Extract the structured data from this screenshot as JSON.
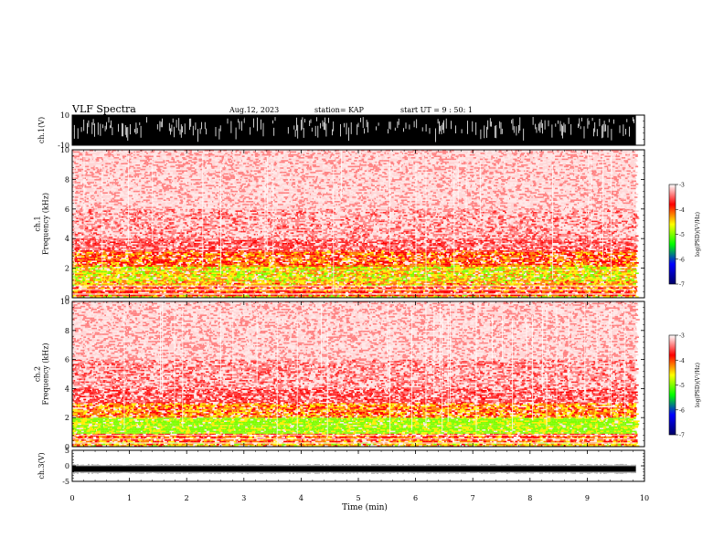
{
  "header": {
    "title": "VLF Spectra",
    "date": "Aug.12, 2023",
    "station": "station= KAP",
    "start_ut": "start UT =  9 : 50: 1"
  },
  "chart_data": [
    {
      "type": "line",
      "id": "ch1-waveform",
      "ylabel": "ch.1(V)",
      "ylim": [
        -10,
        10
      ],
      "yticks": [
        "10",
        "-10"
      ],
      "xlim": [
        0,
        10
      ],
      "data_extent_min": 9.85,
      "envelope": "saturated between -10 and 10 V with frequent dropouts"
    },
    {
      "type": "heatmap",
      "id": "ch1-spectrogram",
      "ylabel": "ch.1\nFrequency (kHz)",
      "ylabel_lines": [
        "ch.1",
        "Frequency (kHz)"
      ],
      "ylim": [
        0,
        10
      ],
      "yticks": [
        "0",
        "2",
        "4",
        "6",
        "8",
        "10"
      ],
      "xlim": [
        0,
        10
      ],
      "data_extent_min": 9.85,
      "band_profile_khz": [
        {
          "f0": 0.0,
          "f1": 0.2,
          "level": 0.78
        },
        {
          "f0": 0.2,
          "f1": 0.5,
          "level": 0.55
        },
        {
          "f0": 0.5,
          "f1": 0.9,
          "level": 0.62
        },
        {
          "f0": 0.9,
          "f1": 1.2,
          "level": 0.72
        },
        {
          "f0": 1.2,
          "f1": 2.2,
          "level": 0.78
        },
        {
          "f0": 2.2,
          "f1": 3.2,
          "level": 0.62
        },
        {
          "f0": 3.2,
          "f1": 4.0,
          "level": 0.34
        },
        {
          "f0": 4.0,
          "f1": 6.0,
          "level": 0.22
        },
        {
          "f0": 6.0,
          "f1": 10.0,
          "level": 0.14
        }
      ]
    },
    {
      "type": "heatmap",
      "id": "ch2-spectrogram",
      "ylabel": "ch.2\nFrequency (kHz)",
      "ylabel_lines": [
        "ch.2",
        "Frequency (kHz)"
      ],
      "ylim": [
        0,
        10
      ],
      "yticks": [
        "0",
        "2",
        "4",
        "6",
        "8",
        "10"
      ],
      "xlim": [
        0,
        10
      ],
      "data_extent_min": 9.85,
      "band_profile_khz": [
        {
          "f0": 0.0,
          "f1": 0.3,
          "level": 0.72
        },
        {
          "f0": 0.3,
          "f1": 0.9,
          "level": 0.62
        },
        {
          "f0": 0.9,
          "f1": 2.0,
          "level": 0.9
        },
        {
          "f0": 2.0,
          "f1": 3.0,
          "level": 0.66
        },
        {
          "f0": 3.0,
          "f1": 4.0,
          "level": 0.36
        },
        {
          "f0": 4.0,
          "f1": 6.0,
          "level": 0.24
        },
        {
          "f0": 6.0,
          "f1": 10.0,
          "level": 0.15
        }
      ]
    },
    {
      "type": "line",
      "id": "ch3-waveform",
      "ylabel": "ch.3(V)",
      "ylim": [
        -5,
        5
      ],
      "yticks": [
        "5",
        "0",
        "-5"
      ],
      "xlim": [
        0,
        10
      ],
      "data_extent_min": 9.85,
      "envelope": "narrow band around -1 V"
    }
  ],
  "colorbars": [
    {
      "id": "colorbar-ch1",
      "label": "log(PSD)(V²/Hz)",
      "range": [
        -7,
        -3
      ],
      "ticks": [
        "-3",
        "-4",
        "-5",
        "-6",
        "-7"
      ]
    },
    {
      "id": "colorbar-ch2",
      "label": "log(PSD)(V²/Hz)",
      "range": [
        -7,
        -3
      ],
      "ticks": [
        "-3",
        "-4",
        "-5",
        "-6",
        "-7"
      ]
    }
  ],
  "colormap": [
    "#ffffff",
    "#ff0000",
    "#ffff00",
    "#00ff00",
    "#0000ff",
    "#000066"
  ],
  "x_axis": {
    "label": "Time (min)",
    "ticks": [
      "0",
      "1",
      "2",
      "3",
      "4",
      "5",
      "6",
      "7",
      "8",
      "9",
      "10"
    ],
    "range": [
      0,
      10
    ]
  }
}
